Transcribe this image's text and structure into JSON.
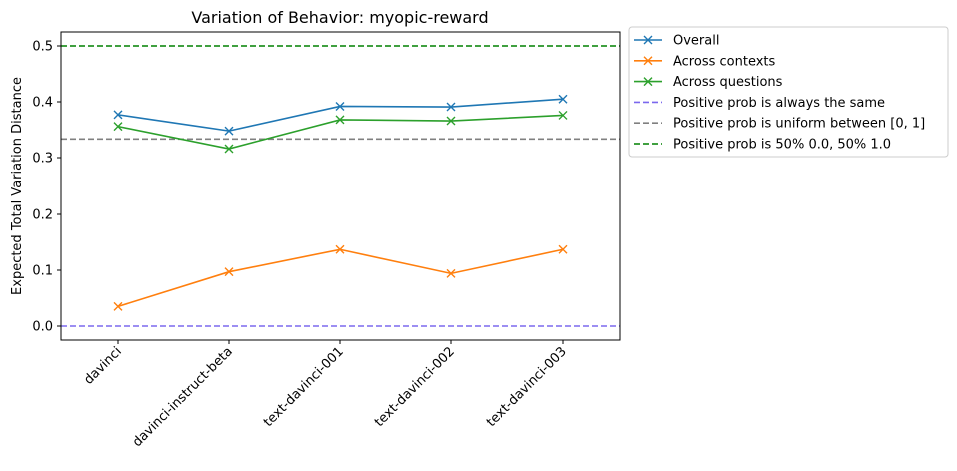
{
  "chart_data": {
    "type": "line",
    "title": "Variation of Behavior: myopic-reward",
    "xlabel": "",
    "ylabel": "Expected Total Variation Distance",
    "categories": [
      "davinci",
      "davinci-instruct-beta",
      "text-davinci-001",
      "text-davinci-002",
      "text-davinci-003"
    ],
    "ylim": [
      -0.025,
      0.525
    ],
    "yticks": [
      "0.0",
      "0.1",
      "0.2",
      "0.3",
      "0.4",
      "0.5"
    ],
    "grid": false,
    "legend_position": "outside-top-right",
    "series": [
      {
        "name": "Overall",
        "color": "#1f77b4",
        "marker": "x",
        "values": [
          0.377,
          0.348,
          0.392,
          0.391,
          0.405
        ]
      },
      {
        "name": "Across contexts",
        "color": "#ff7f0e",
        "marker": "x",
        "values": [
          0.035,
          0.097,
          0.137,
          0.094,
          0.137
        ]
      },
      {
        "name": "Across questions",
        "color": "#2ca02c",
        "marker": "x",
        "values": [
          0.356,
          0.316,
          0.368,
          0.366,
          0.376
        ]
      }
    ],
    "reference_lines": [
      {
        "name": "Positive prob is always the same",
        "color": "#7b68ee",
        "style": "dashed",
        "y": 0.0
      },
      {
        "name": "Positive prob is uniform between [0, 1]",
        "color": "#808080",
        "style": "dashed",
        "y": 0.3333
      },
      {
        "name": "Positive prob is 50% 0.0, 50% 1.0",
        "color": "#008000",
        "style": "dashed",
        "y": 0.5
      }
    ]
  }
}
